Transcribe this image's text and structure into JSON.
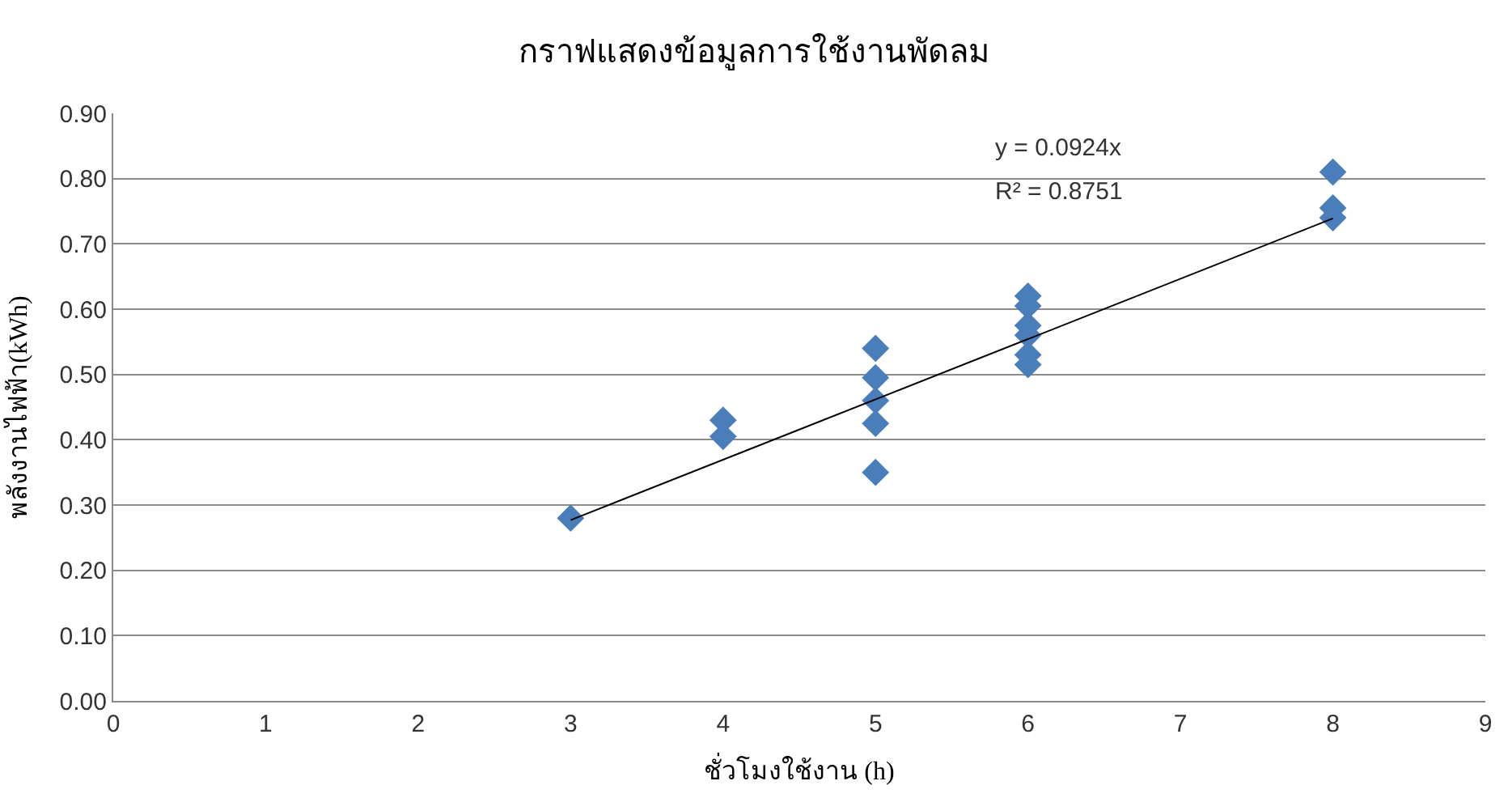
{
  "chart_data": {
    "type": "scatter",
    "title": "กราฟแสดงข้อมูลการใช้งานพัดลม",
    "xlabel": "ชั่วโมงใช้งาน (h)",
    "ylabel": "พลังงานไฟฟ้า(kWh)",
    "series": [
      {
        "color": "#4a7ebb",
        "marker": "diamond",
        "x": [
          3,
          4,
          4,
          5,
          5,
          5,
          5,
          5,
          6,
          6,
          6,
          6,
          6,
          6,
          8,
          8,
          8
        ],
        "values": [
          0.28,
          0.43,
          0.405,
          0.54,
          0.495,
          0.46,
          0.425,
          0.35,
          0.62,
          0.605,
          0.575,
          0.56,
          0.53,
          0.515,
          0.81,
          0.755,
          0.74
        ]
      },
      {
        "type": "line",
        "color": "#000000",
        "marker": "none",
        "x": [
          3,
          8
        ],
        "values": [
          0.277,
          0.739
        ]
      }
    ],
    "annotations": [
      "y = 0.0924x",
      "R² = 0.8751"
    ],
    "xlim": [
      0,
      9
    ],
    "xticks": [
      0,
      1,
      2,
      3,
      4,
      5,
      6,
      7,
      8,
      9
    ],
    "ylim": [
      0,
      0.9
    ],
    "yticks": [
      {
        "value": 0,
        "label": "0.00"
      },
      {
        "value": 0.1,
        "label": "0.10"
      },
      {
        "value": 0.2,
        "label": "0.20"
      },
      {
        "value": 0.3,
        "label": "0.30"
      },
      {
        "value": 0.4,
        "label": "0.40"
      },
      {
        "value": 0.5,
        "label": "0.50"
      },
      {
        "value": 0.6,
        "label": "0.60"
      },
      {
        "value": 0.7,
        "label": "0.70"
      },
      {
        "value": 0.8,
        "label": "0.80"
      },
      {
        "value": 0.9,
        "label": "0.90"
      }
    ],
    "grid": "y"
  }
}
